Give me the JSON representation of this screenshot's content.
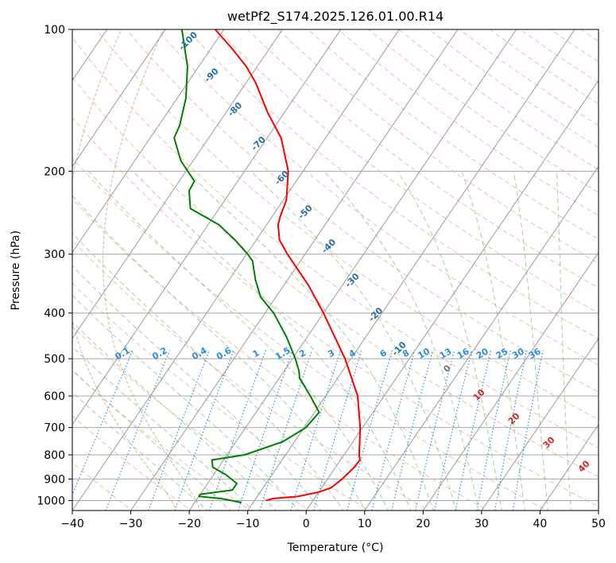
{
  "chart_data": {
    "type": "line",
    "subtype": "skew-t log-p diagram",
    "title": "wetPf2_S174.2025.126.01.00.R14",
    "xlabel": "Temperature (°C)",
    "ylabel": "Pressure (hPa)",
    "xlim": [
      -40,
      50
    ],
    "ylim": [
      1050,
      100
    ],
    "y_scale": "log",
    "x_ticks": [
      -40,
      -30,
      -20,
      -10,
      0,
      10,
      20,
      30,
      40,
      50
    ],
    "y_ticks": [
      100,
      200,
      300,
      400,
      500,
      600,
      700,
      800,
      900,
      1000
    ],
    "grid": true,
    "series": [
      {
        "role": "temperature",
        "color": "#ff0000",
        "points": [
          {
            "p": 1000,
            "t": -8
          },
          {
            "p": 990,
            "t": -7
          },
          {
            "p": 980,
            "t": -3
          },
          {
            "p": 960,
            "t": 0
          },
          {
            "p": 940,
            "t": 1.6
          },
          {
            "p": 900,
            "t": 2.5
          },
          {
            "p": 850,
            "t": 3.2
          },
          {
            "p": 820,
            "t": 3.3
          },
          {
            "p": 800,
            "t": 2.6
          },
          {
            "p": 700,
            "t": -0.4
          },
          {
            "p": 600,
            "t": -4.5
          },
          {
            "p": 500,
            "t": -11
          },
          {
            "p": 400,
            "t": -20
          },
          {
            "p": 350,
            "t": -25.7
          },
          {
            "p": 300,
            "t": -33
          },
          {
            "p": 280,
            "t": -36
          },
          {
            "p": 260,
            "t": -38
          },
          {
            "p": 250,
            "t": -38.6
          },
          {
            "p": 230,
            "t": -39.5
          },
          {
            "p": 200,
            "t": -42.5
          },
          {
            "p": 170,
            "t": -47.6
          },
          {
            "p": 150,
            "t": -52.9
          },
          {
            "p": 130,
            "t": -58.3
          },
          {
            "p": 120,
            "t": -61.8
          },
          {
            "p": 110,
            "t": -66.3
          },
          {
            "p": 100,
            "t": -71.5
          }
        ]
      },
      {
        "role": "dewpoint",
        "color": "#008000",
        "points": [
          {
            "p": 1010,
            "t": -12
          },
          {
            "p": 1000,
            "t": -14
          },
          {
            "p": 990,
            "t": -16
          },
          {
            "p": 980,
            "t": -20
          },
          {
            "p": 970,
            "t": -20
          },
          {
            "p": 950,
            "t": -15
          },
          {
            "p": 920,
            "t": -15
          },
          {
            "p": 880,
            "t": -18
          },
          {
            "p": 850,
            "t": -21
          },
          {
            "p": 820,
            "t": -22
          },
          {
            "p": 800,
            "t": -17
          },
          {
            "p": 750,
            "t": -12
          },
          {
            "p": 700,
            "t": -9.7
          },
          {
            "p": 650,
            "t": -9.2
          },
          {
            "p": 600,
            "t": -12.6
          },
          {
            "p": 550,
            "t": -16.5
          },
          {
            "p": 530,
            "t": -17.5
          },
          {
            "p": 500,
            "t": -19.5
          },
          {
            "p": 450,
            "t": -23.5
          },
          {
            "p": 400,
            "t": -28.5
          },
          {
            "p": 370,
            "t": -32.6
          },
          {
            "p": 340,
            "t": -35.5
          },
          {
            "p": 310,
            "t": -38.2
          },
          {
            "p": 300,
            "t": -39.8
          },
          {
            "p": 280,
            "t": -43.6
          },
          {
            "p": 260,
            "t": -48.1
          },
          {
            "p": 240,
            "t": -54.9
          },
          {
            "p": 220,
            "t": -57.2
          },
          {
            "p": 210,
            "t": -57.4
          },
          {
            "p": 190,
            "t": -62.1
          },
          {
            "p": 170,
            "t": -65.9
          },
          {
            "p": 160,
            "t": -66.4
          },
          {
            "p": 140,
            "t": -68.5
          },
          {
            "p": 120,
            "t": -71.9
          },
          {
            "p": 100,
            "t": -77.2
          }
        ]
      }
    ],
    "dry_adiabat_labels": [
      "-100",
      "-90",
      "-80",
      "-70",
      "-60",
      "-50",
      "-40",
      "-30",
      "-20",
      "-10",
      "0",
      "10",
      "20",
      "30",
      "40"
    ],
    "mixing_ratio_labels": [
      "0.1",
      "0.2",
      "0.4",
      "0.6",
      "1",
      "1.5",
      "2",
      "3",
      "4",
      "6",
      "8",
      "10",
      "13",
      "16",
      "20",
      "25",
      "30",
      "36"
    ],
    "colors": {
      "isotherm": "#9a9a9a",
      "isobar": "#a8a8a8",
      "dry_adiabat": "#f4a582",
      "moist_adiabat": "#8cc58c",
      "mixing_ratio": "#2b8ee6",
      "label_cold": "#2a6fa8",
      "label_warm": "#d62728",
      "label_zero": "#777777",
      "extra_curve": "#d8c4a8"
    }
  }
}
